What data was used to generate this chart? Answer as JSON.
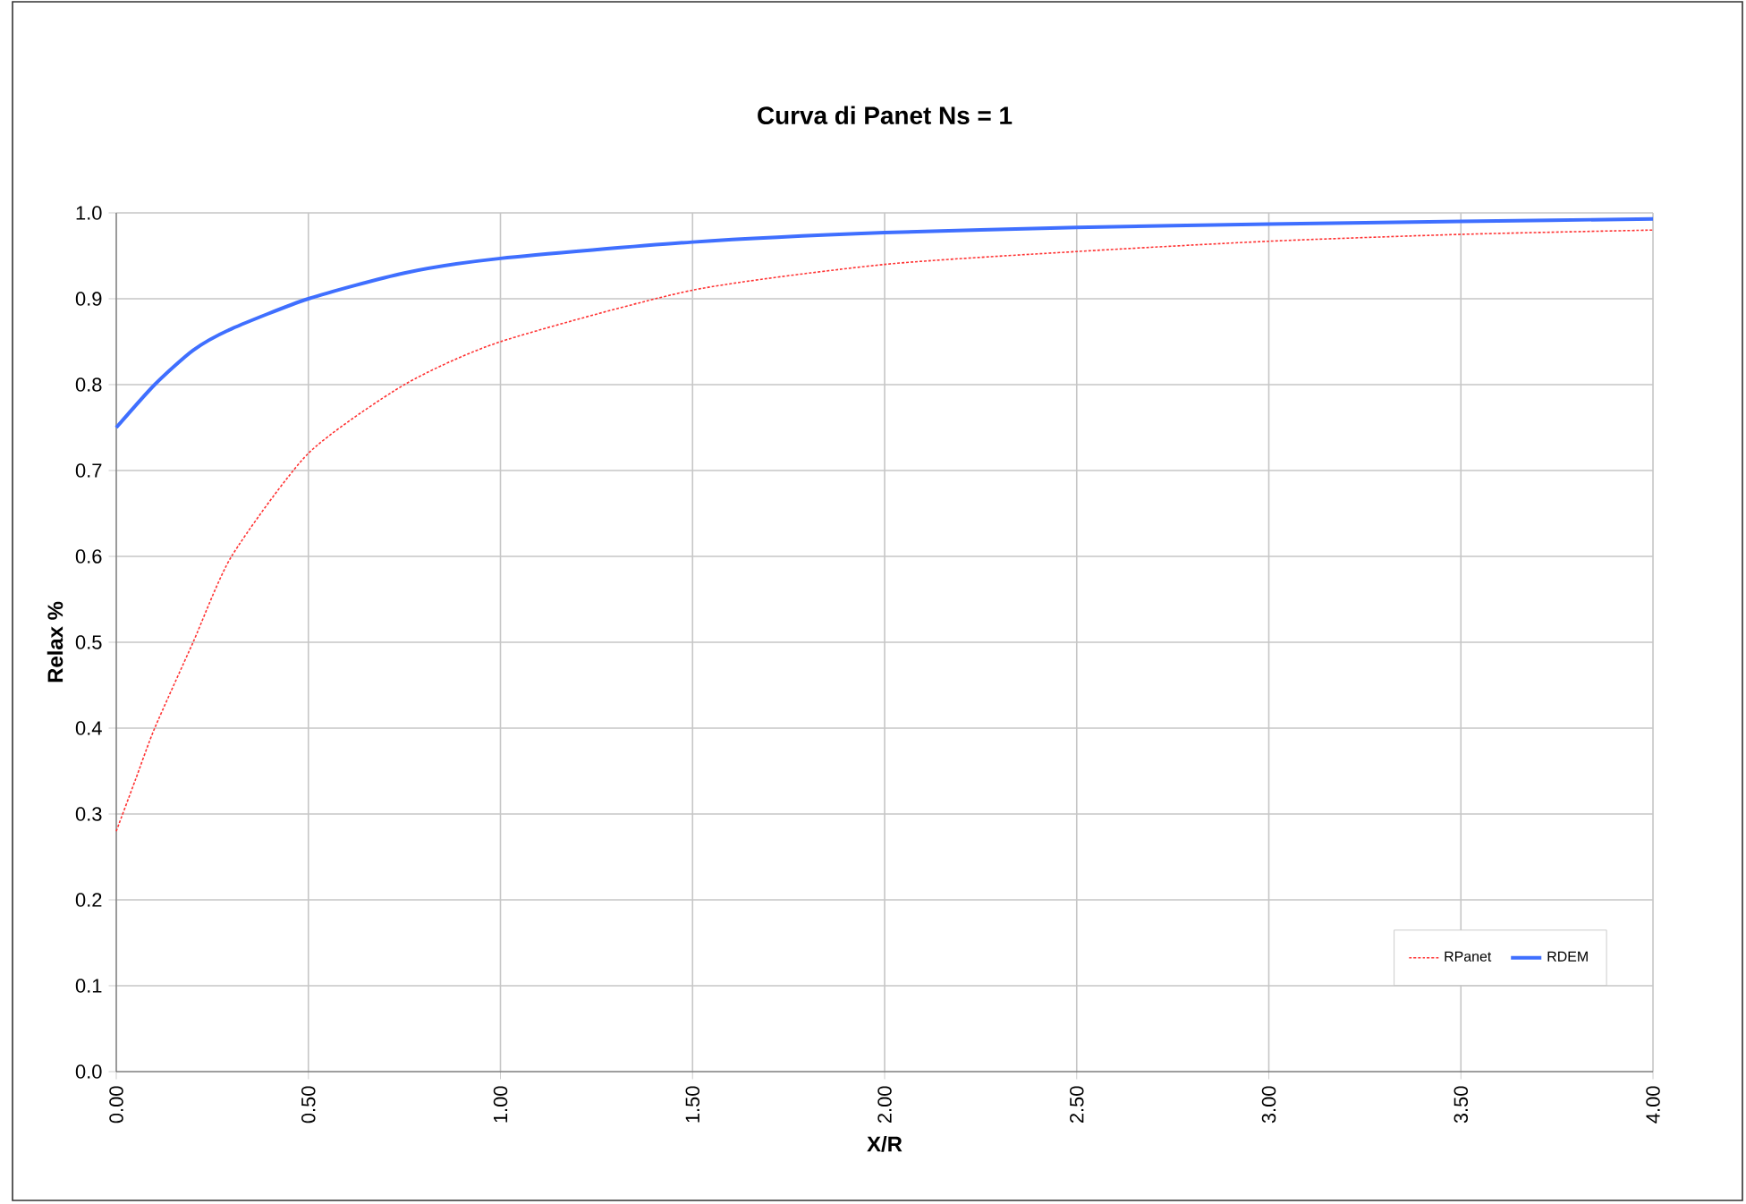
{
  "chart_data": {
    "type": "line",
    "title": "Curva di Panet Ns = 1",
    "xlabel": "X/R",
    "ylabel": "Relax %",
    "xlim": [
      0,
      4
    ],
    "ylim": [
      0,
      1
    ],
    "xticks": [
      {
        "value": 0,
        "label": "0.00"
      },
      {
        "value": 0.5,
        "label": "0.50"
      },
      {
        "value": 1,
        "label": "1.00"
      },
      {
        "value": 1.5,
        "label": "1.50"
      },
      {
        "value": 2,
        "label": "2.00"
      },
      {
        "value": 2.5,
        "label": "2.50"
      },
      {
        "value": 3,
        "label": "3.00"
      },
      {
        "value": 3.5,
        "label": "3.50"
      },
      {
        "value": 4,
        "label": "4.00"
      }
    ],
    "yticks": [
      {
        "value": 0,
        "label": "0.0"
      },
      {
        "value": 0.1,
        "label": "0.1"
      },
      {
        "value": 0.2,
        "label": "0.2"
      },
      {
        "value": 0.3,
        "label": "0.3"
      },
      {
        "value": 0.4,
        "label": "0.4"
      },
      {
        "value": 0.5,
        "label": "0.5"
      },
      {
        "value": 0.6,
        "label": "0.6"
      },
      {
        "value": 0.7,
        "label": "0.7"
      },
      {
        "value": 0.8,
        "label": "0.8"
      },
      {
        "value": 0.9,
        "label": "0.9"
      },
      {
        "value": 1,
        "label": "1.0"
      }
    ],
    "grid": true,
    "legend": "bottom right",
    "marker": "none",
    "series": [
      {
        "name": "RPanet",
        "color": "#ff3333",
        "line_style": "dotted",
        "x": [
          0,
          0.05,
          0.1,
          0.2,
          0.3,
          0.5,
          0.75,
          1,
          1.5,
          2,
          2.5,
          3,
          3.5,
          4
        ],
        "values": [
          0.28,
          0.34,
          0.4,
          0.5,
          0.6,
          0.72,
          0.8,
          0.85,
          0.91,
          0.94,
          0.955,
          0.967,
          0.975,
          0.98
        ]
      },
      {
        "name": "RDEM",
        "color": "#3f6fff",
        "line_style": "solid",
        "x": [
          0,
          0.1,
          0.2,
          0.3,
          0.5,
          0.75,
          1,
          1.5,
          2,
          2.5,
          3,
          3.5,
          4
        ],
        "values": [
          0.75,
          0.8,
          0.84,
          0.865,
          0.9,
          0.93,
          0.947,
          0.966,
          0.977,
          0.983,
          0.987,
          0.99,
          0.993
        ]
      }
    ]
  }
}
